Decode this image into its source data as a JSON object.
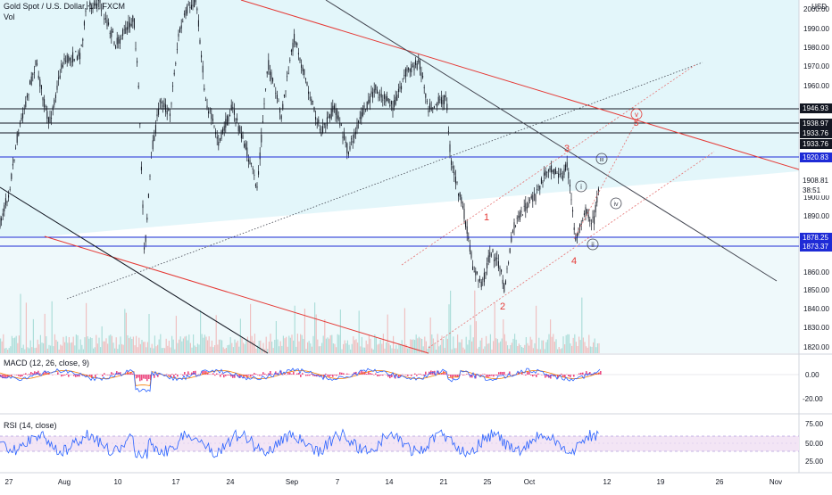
{
  "header": {
    "symbol_title": "Gold Spot / U.S. Dollar, 1h, FXCM",
    "volume_label": "Vol",
    "currency": "USD",
    "macd_label": "MACD (12, 26, close, 9)",
    "rsi_label": "RSI (14, close)"
  },
  "price_axis": {
    "ticks": [
      "2000.00",
      "1990.00",
      "1980.00",
      "1970.00",
      "1960.00",
      "1910.00",
      "1900.00",
      "1890.00",
      "1860.00",
      "1850.00",
      "1840.00",
      "1830.00",
      "1820.00"
    ]
  },
  "price_tags": [
    {
      "text": "1946.93",
      "style": "price"
    },
    {
      "text": "1938.97",
      "style": "price"
    },
    {
      "text": "1933.76",
      "style": "price"
    },
    {
      "text": "1933.76",
      "style": "price"
    },
    {
      "text": "1920.83",
      "style": "blue"
    },
    {
      "text": "1908.81",
      "style": "white"
    },
    {
      "text": "38:51",
      "style": "white"
    },
    {
      "text": "1878.25",
      "style": "blue"
    },
    {
      "text": "1873.37",
      "style": "blue"
    }
  ],
  "macd_axis": {
    "ticks": [
      "0.00",
      "-20.00"
    ]
  },
  "rsi_axis": {
    "ticks": [
      "75.00",
      "50.00",
      "25.00"
    ]
  },
  "time_axis": {
    "labels": [
      "27",
      "Aug",
      "10",
      "17",
      "24",
      "Sep",
      "7",
      "14",
      "21",
      "25",
      "Oct",
      "12",
      "19",
      "26",
      "Nov"
    ]
  },
  "wave_labels": {
    "primary": [
      "1",
      "2",
      "3",
      "4",
      "5"
    ],
    "minor": [
      "i",
      "ii",
      "iii",
      "iv",
      "v"
    ]
  },
  "colors": {
    "channel_fill": "#d9f3f8",
    "up_candle": "#131722",
    "red_line": "#e53935",
    "blue_line": "#1e2bd6",
    "macd_line": "#2962ff",
    "macd_hist": "#e91e63",
    "rsi_line": "#2962ff",
    "rsi_band": "#f3e5f5"
  }
}
